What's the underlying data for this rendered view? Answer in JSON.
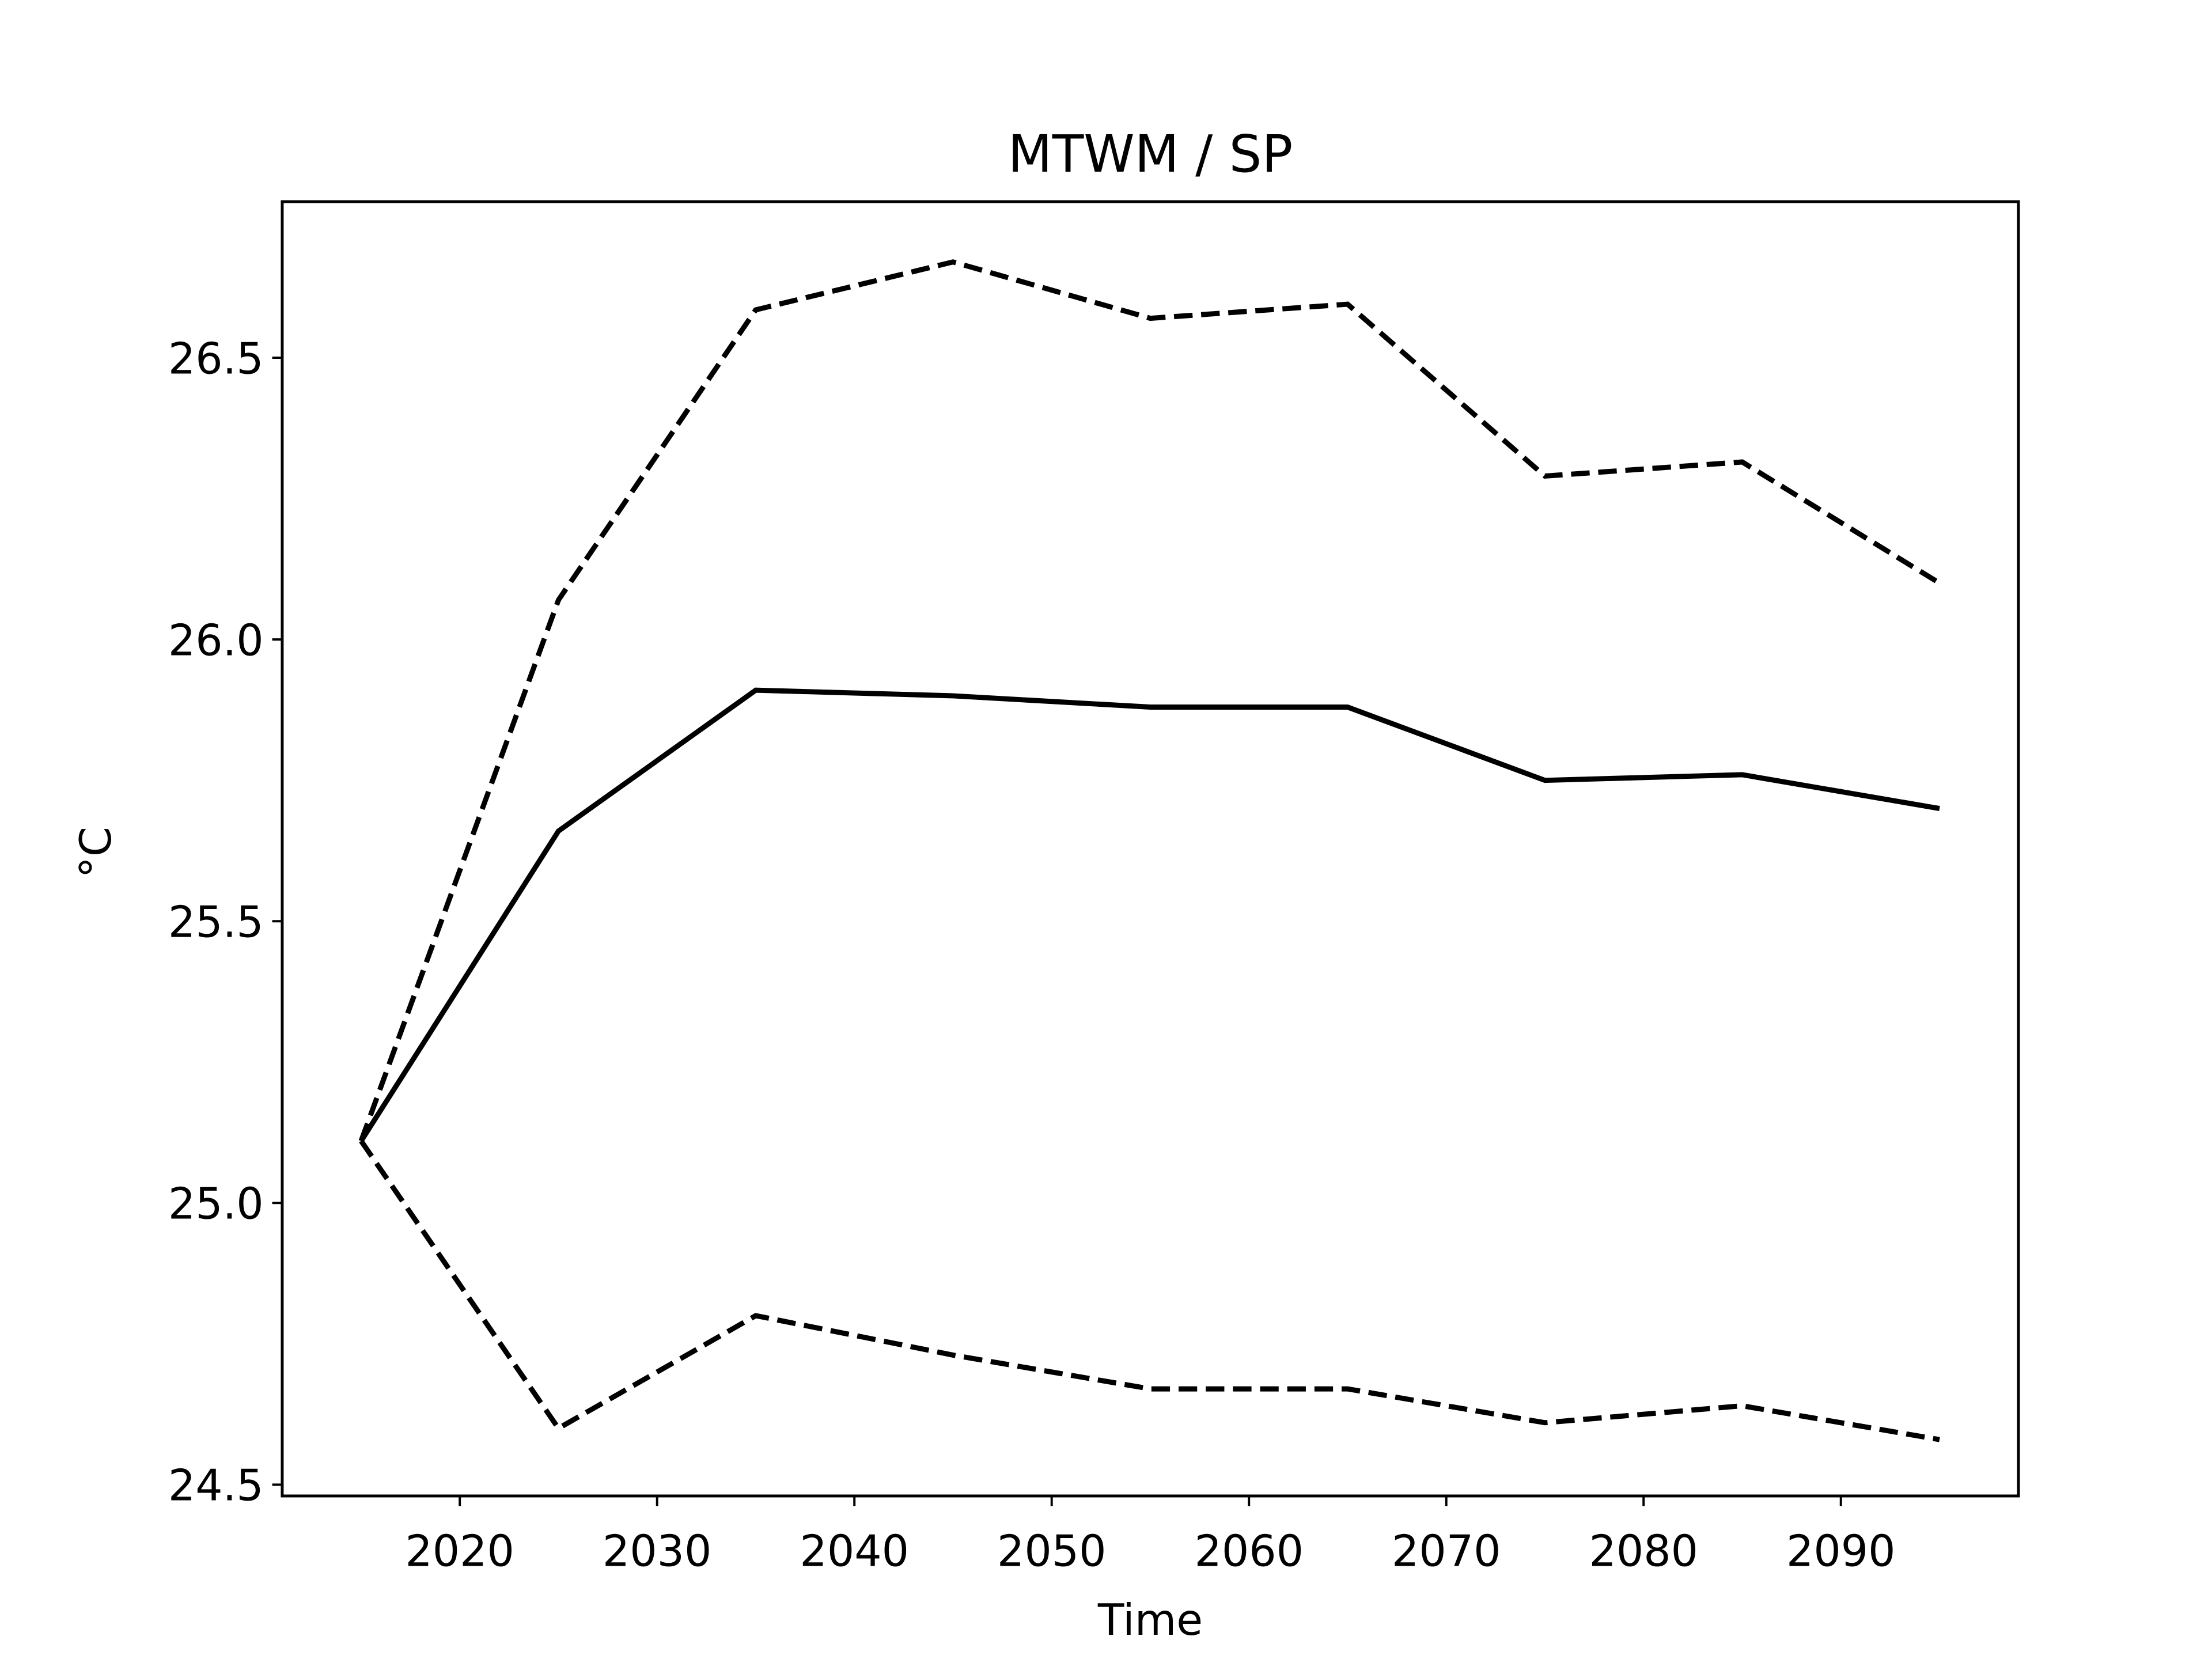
{
  "chart_data": {
    "type": "line",
    "title": "MTWM / SP",
    "x_label": "Time",
    "y_label": "°C",
    "x": [
      2015,
      2025,
      2035,
      2045,
      2055,
      2065,
      2075,
      2085,
      2095
    ],
    "series": [
      {
        "color": "#000000",
        "dashed": false,
        "values": [
          25.11,
          25.66,
          25.91,
          25.9,
          25.88,
          25.88,
          25.75,
          25.76,
          25.7
        ]
      },
      {
        "color": "#000000",
        "dashed": true,
        "values": [
          25.11,
          26.07,
          26.585,
          26.67,
          26.57,
          26.595,
          26.29,
          26.315,
          26.1
        ]
      },
      {
        "color": "#000000",
        "dashed": true,
        "values": [
          25.11,
          24.6,
          24.8,
          24.73,
          24.67,
          24.67,
          24.61,
          24.64,
          24.58
        ]
      }
    ],
    "xlim": [
      2011,
      2099
    ],
    "ylim": [
      24.48,
      26.777
    ],
    "xticks": [
      2020,
      2030,
      2040,
      2050,
      2060,
      2070,
      2080,
      2090
    ],
    "yticks": [
      {
        "value": 24.5,
        "label": "24.5"
      },
      {
        "value": 25,
        "label": "25.0"
      },
      25.5,
      {
        "value": 26,
        "label": "26.0"
      },
      26.5
    ],
    "grid": false
  }
}
